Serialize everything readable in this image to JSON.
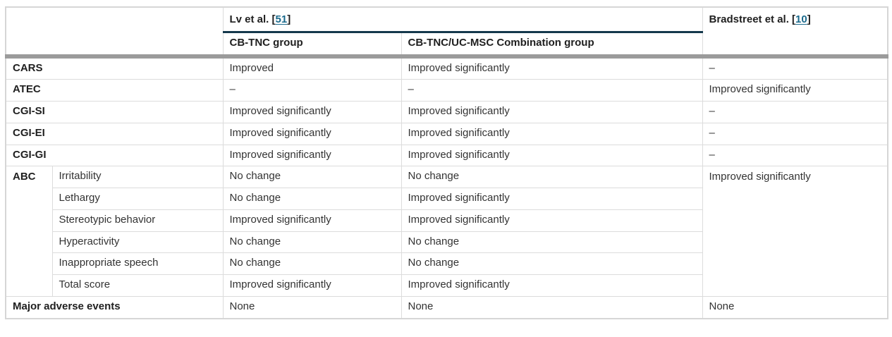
{
  "colors": {
    "citation_link": "#1b6a8c",
    "study_rule": "#14384c",
    "header_divider": "#9b9b9b",
    "cell_border": "#dcdcdc",
    "body_text": "#333333",
    "bold_text": "#1f1f1f"
  },
  "header": {
    "study1_prefix": "Lv et al. [",
    "study1_ref": "51",
    "study1_suffix": "]",
    "study2_prefix": "Bradstreet et al. [",
    "study2_ref": "10",
    "study2_suffix": "]",
    "group1": "CB-TNC group",
    "group2": "CB-TNC/UC-MSC Combination group"
  },
  "rows": {
    "cars": {
      "label": "CARS",
      "cbtnc": "Improved",
      "combo": "Improved significantly",
      "bradstreet": "–"
    },
    "atec": {
      "label": "ATEC",
      "cbtnc": "–",
      "combo": "–",
      "bradstreet": "Improved significantly"
    },
    "cgi_si": {
      "label": "CGI-SI",
      "cbtnc": "Improved significantly",
      "combo": "Improved significantly",
      "bradstreet": "–"
    },
    "cgi_ei": {
      "label": "CGI-EI",
      "cbtnc": "Improved significantly",
      "combo": "Improved significantly",
      "bradstreet": "–"
    },
    "cgi_gi": {
      "label": "CGI-GI",
      "cbtnc": "Improved significantly",
      "combo": "Improved significantly",
      "bradstreet": "–"
    },
    "abc": {
      "label": "ABC",
      "bradstreet": "Improved significantly",
      "sub": [
        {
          "label": "Irritability",
          "cbtnc": "No change",
          "combo": "No change"
        },
        {
          "label": "Lethargy",
          "cbtnc": "No change",
          "combo": "Improved significantly"
        },
        {
          "label": "Stereotypic behavior",
          "cbtnc": "Improved significantly",
          "combo": "Improved significantly"
        },
        {
          "label": "Hyperactivity",
          "cbtnc": "No change",
          "combo": "No change"
        },
        {
          "label": "Inappropriate speech",
          "cbtnc": "No change",
          "combo": "No change"
        },
        {
          "label": "Total score",
          "cbtnc": "Improved significantly",
          "combo": "Improved significantly"
        }
      ]
    },
    "adverse": {
      "label": "Major adverse events",
      "cbtnc": "None",
      "combo": "None",
      "bradstreet": "None"
    }
  }
}
